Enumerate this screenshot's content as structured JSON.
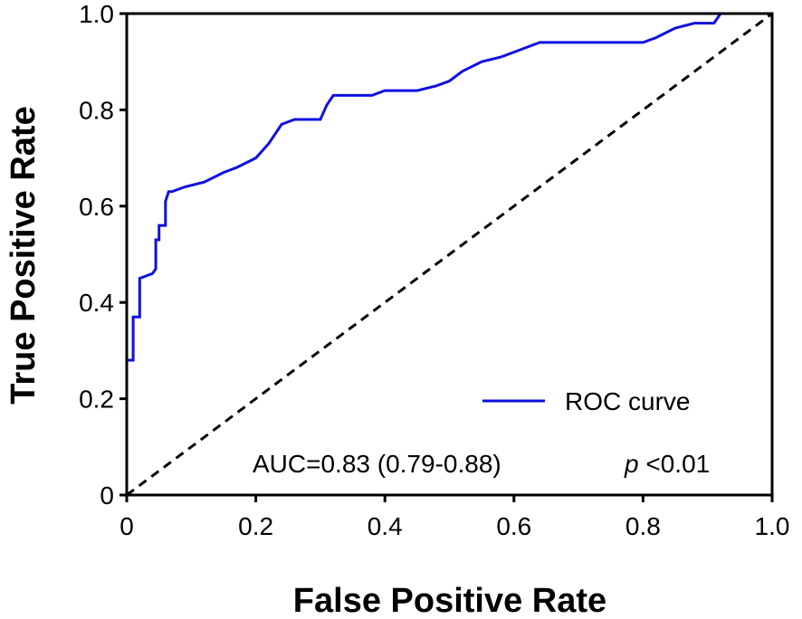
{
  "chart_data": {
    "type": "line",
    "title": "",
    "xlabel": "False Positive Rate",
    "ylabel": "True Positive Rate",
    "xlim": [
      0,
      1
    ],
    "ylim": [
      0,
      1
    ],
    "x_ticks": [
      0,
      0.2,
      0.4,
      0.6,
      0.8,
      1.0
    ],
    "x_tick_labels": [
      "0",
      "0.2",
      "0.4",
      "0.6",
      "0.8",
      "1.0"
    ],
    "y_ticks": [
      0,
      0.2,
      0.4,
      0.6,
      0.8,
      1.0
    ],
    "y_tick_labels": [
      "0",
      "0.2",
      "0.4",
      "0.6",
      "0.8",
      "1.0"
    ],
    "grid": false,
    "legend": {
      "position": "bottom-right",
      "entries": [
        "ROC curve"
      ]
    },
    "colors": {
      "roc": "#1010e0",
      "reference": "#000000"
    },
    "series": [
      {
        "name": "ROC curve",
        "x": [
          0.0,
          0.0,
          0.01,
          0.01,
          0.02,
          0.02,
          0.04,
          0.045,
          0.045,
          0.05,
          0.05,
          0.06,
          0.06,
          0.065,
          0.07,
          0.09,
          0.12,
          0.15,
          0.17,
          0.2,
          0.22,
          0.24,
          0.26,
          0.3,
          0.31,
          0.32,
          0.38,
          0.4,
          0.45,
          0.48,
          0.5,
          0.52,
          0.55,
          0.58,
          0.6,
          0.64,
          0.7,
          0.8,
          0.82,
          0.85,
          0.88,
          0.91,
          0.92,
          1.0
        ],
        "y": [
          0.0,
          0.28,
          0.28,
          0.37,
          0.37,
          0.45,
          0.46,
          0.47,
          0.53,
          0.53,
          0.56,
          0.56,
          0.61,
          0.63,
          0.63,
          0.64,
          0.65,
          0.67,
          0.68,
          0.7,
          0.73,
          0.77,
          0.78,
          0.78,
          0.81,
          0.83,
          0.83,
          0.84,
          0.84,
          0.85,
          0.86,
          0.88,
          0.9,
          0.91,
          0.92,
          0.94,
          0.94,
          0.94,
          0.95,
          0.97,
          0.98,
          0.98,
          1.0,
          1.0
        ]
      },
      {
        "name": "Reference",
        "style": "dashed",
        "x": [
          0,
          1
        ],
        "y": [
          0,
          1
        ]
      }
    ],
    "annotation": {
      "auc_text": "AUC=0.83 (0.79-0.88)",
      "p_symbol": "p",
      "p_value": "<0.01"
    }
  }
}
